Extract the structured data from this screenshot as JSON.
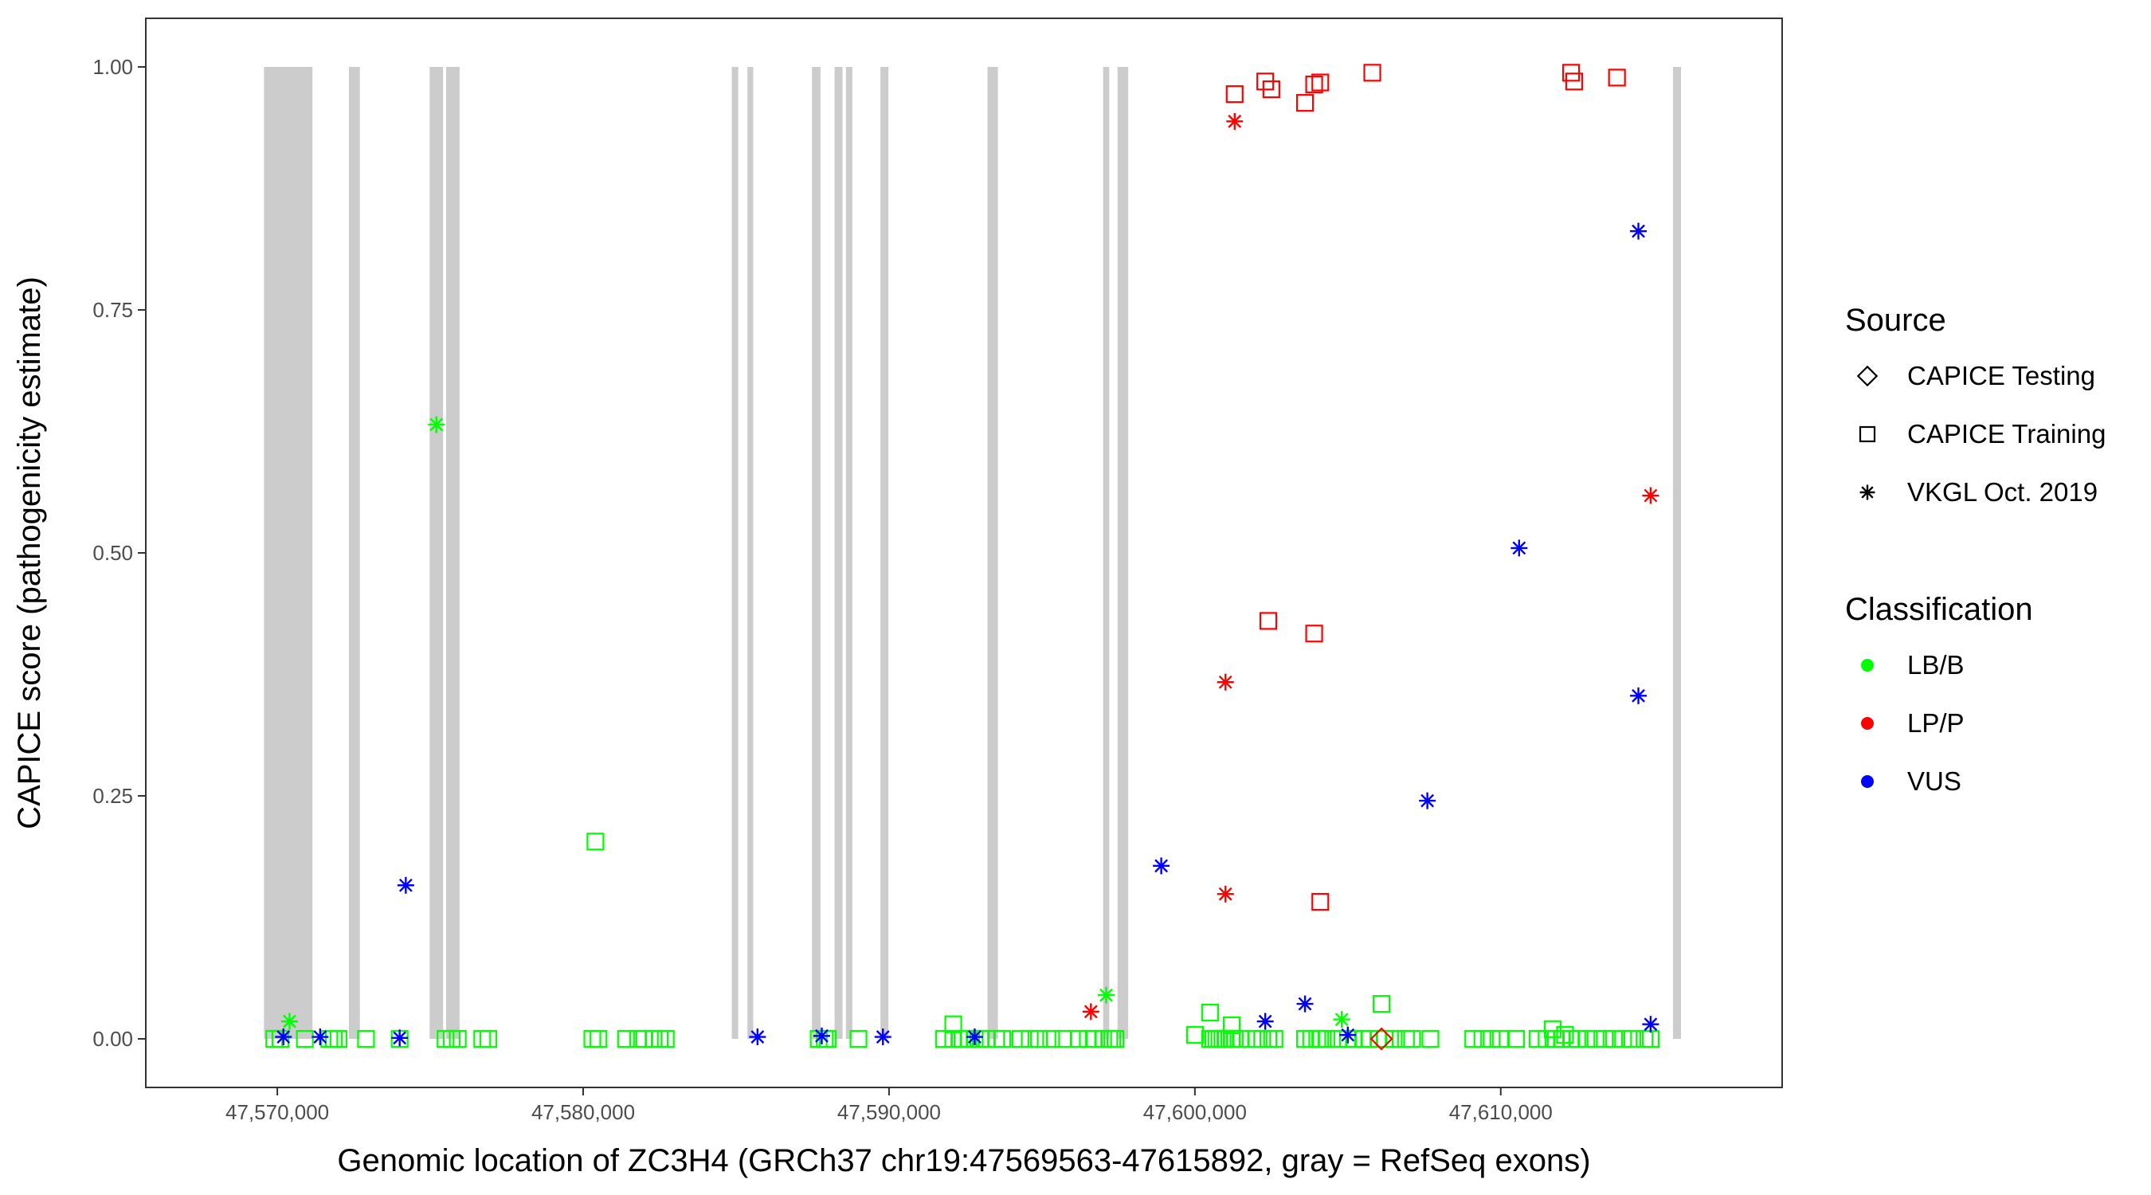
{
  "chart_data": {
    "type": "scatter",
    "xlabel": "Genomic location of ZC3H4 (GRCh37 chr19:47569563-47615892, gray = RefSeq exons)",
    "ylabel": "CAPICE score (pathogenicity estimate)",
    "xlim": [
      47565700,
      47619200
    ],
    "ylim": [
      -0.05,
      1.05
    ],
    "x_ticks": [
      47570000,
      47580000,
      47590000,
      47600000,
      47610000
    ],
    "x_tick_labels": [
      "47,570,000",
      "47,580,000",
      "47,590,000",
      "47,600,000",
      "47,610,000"
    ],
    "y_ticks": [
      0,
      0.25,
      0.5,
      0.75,
      1.0
    ],
    "y_tick_labels": [
      "0.00",
      "0.25",
      "0.50",
      "0.75",
      "1.00"
    ],
    "grid": false,
    "exons": [
      [
        47569563,
        47571150
      ],
      [
        47572340,
        47572700
      ],
      [
        47574980,
        47575420
      ],
      [
        47575520,
        47575960
      ],
      [
        47584860,
        47585070
      ],
      [
        47585370,
        47585560
      ],
      [
        47587480,
        47587760
      ],
      [
        47588220,
        47588480
      ],
      [
        47588590,
        47588800
      ],
      [
        47589720,
        47589980
      ],
      [
        47593220,
        47593560
      ],
      [
        47597000,
        47597200
      ],
      [
        47597470,
        47597820
      ],
      [
        47615630,
        47615892
      ]
    ],
    "legend": {
      "placement": "right",
      "shape_title": "Source",
      "shape_entries": [
        {
          "label": "CAPICE Testing",
          "shape": "diamond"
        },
        {
          "label": "CAPICE Training",
          "shape": "square"
        },
        {
          "label": "VKGL Oct. 2019",
          "shape": "asterisk"
        }
      ],
      "color_title": "Classification",
      "color_entries": [
        {
          "label": "LB/B",
          "color": "#00ff00"
        },
        {
          "label": "LP/P",
          "color": "#ff0000"
        },
        {
          "label": "VUS",
          "color": "#0000ff"
        }
      ]
    },
    "series": [
      {
        "name": "LB/B",
        "source": "CAPICE Training",
        "color": "#00ff00",
        "shape": "square",
        "x": [
          47569900,
          47570100,
          47570900,
          47571700,
          47571850,
          47572000,
          47572900,
          47574000,
          47575500,
          47575700,
          47575900,
          47576700,
          47576900,
          47580300,
          47580500,
          47581400,
          47581800,
          47582000,
          47582300,
          47582500,
          47582700,
          47587700,
          47587900,
          47588000,
          47589000,
          47591800,
          47592100,
          47592300,
          47592400,
          47592600,
          47592800,
          47593000,
          47593200,
          47593500,
          47593700,
          47594300,
          47594600,
          47594900,
          47595300,
          47595700,
          47596200,
          47596500,
          47596700,
          47597000,
          47597200,
          47597300,
          47597400,
          47580400,
          47600500,
          47600600,
          47600700,
          47600800,
          47600900,
          47601000,
          47601200,
          47601000,
          47601200,
          47601300,
          47601500,
          47602000,
          47602200,
          47602400,
          47602600,
          47603600,
          47603800,
          47604000,
          47604100,
          47604300,
          47604700,
          47605000,
          47605200,
          47605500,
          47605700,
          47606000,
          47606200,
          47606500,
          47606900,
          47607100,
          47607700,
          47609100,
          47609400,
          47609700,
          47610000,
          47610500,
          47611200,
          47611500,
          47611800,
          47612000,
          47612300,
          47612500,
          47612800,
          47613100,
          47613400,
          47613700,
          47614000,
          47614300,
          47614700,
          47614900,
          47600500,
          47601200,
          47606100,
          47611700,
          47612100,
          47592100,
          47600000
        ],
        "y": [
          0,
          0,
          0,
          0,
          0,
          0,
          0,
          0,
          0,
          0,
          0,
          0,
          0,
          0,
          0,
          0,
          0,
          0,
          0,
          0,
          0,
          0,
          0,
          0,
          0,
          0,
          0,
          0,
          0,
          0,
          0,
          0,
          0,
          0,
          0,
          0,
          0,
          0,
          0,
          0,
          0,
          0,
          0,
          0,
          0,
          0,
          0,
          0.203,
          0,
          0,
          0,
          0,
          0,
          0,
          0,
          0,
          0,
          0,
          0,
          0,
          0,
          0,
          0,
          0,
          0,
          0,
          0,
          0,
          0,
          0,
          0,
          0,
          0,
          0,
          0,
          0,
          0,
          0,
          0,
          0,
          0,
          0,
          0,
          0,
          0,
          0,
          0,
          0,
          0,
          0,
          0,
          0,
          0,
          0,
          0,
          0,
          0,
          0,
          0.027,
          0.014,
          0.036,
          0.01,
          0.004,
          0.015,
          0.004
        ]
      },
      {
        "name": "LB/B",
        "source": "VKGL Oct. 2019",
        "color": "#00ff00",
        "shape": "asterisk",
        "x": [
          47570400,
          47575200,
          47597100,
          47604800
        ],
        "y": [
          0.018,
          0.632,
          0.045,
          0.02
        ]
      },
      {
        "name": "LP/P",
        "source": "CAPICE Training",
        "color": "#ff0000",
        "shape": "square",
        "x": [
          47601300,
          47602300,
          47602500,
          47603600,
          47603900,
          47604100,
          47605800,
          47612300,
          47612400,
          47613800,
          47602400,
          47603900,
          47604100
        ],
        "y": [
          0.972,
          0.985,
          0.977,
          0.963,
          0.982,
          0.984,
          0.994,
          0.994,
          0.985,
          0.989,
          0.43,
          0.417,
          0.141
        ]
      },
      {
        "name": "LP/P",
        "source": "VKGL Oct. 2019",
        "color": "#ff0000",
        "shape": "asterisk",
        "x": [
          47601300,
          47601000,
          47601000,
          47596600,
          47614900
        ],
        "y": [
          0.944,
          0.367,
          0.149,
          0.028,
          0.559
        ]
      },
      {
        "name": "LP/P",
        "source": "CAPICE Testing",
        "color": "#ff0000",
        "shape": "diamond",
        "x": [
          47606100
        ],
        "y": [
          0.0
        ]
      },
      {
        "name": "VUS",
        "source": "VKGL Oct. 2019",
        "color": "#0000ff",
        "shape": "asterisk",
        "x": [
          47570200,
          47571400,
          47574000,
          47574200,
          47585700,
          47587800,
          47589800,
          47592800,
          47598900,
          47602300,
          47603600,
          47605000,
          47607600,
          47610600,
          47614500,
          47614500,
          47614900
        ],
        "y": [
          0.002,
          0.002,
          0.001,
          0.158,
          0.002,
          0.003,
          0.002,
          0.002,
          0.178,
          0.018,
          0.036,
          0.004,
          0.245,
          0.505,
          0.831,
          0.353,
          0.015
        ]
      }
    ]
  }
}
